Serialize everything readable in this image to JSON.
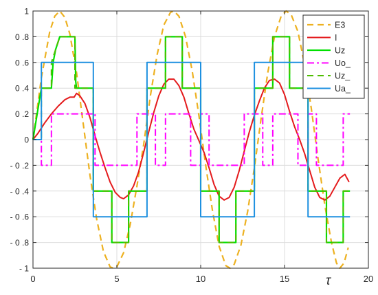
{
  "chart_data": {
    "type": "line",
    "xlabel": "τ",
    "ylabel": "",
    "title": "",
    "xlim": [
      0,
      20
    ],
    "ylim": [
      -1,
      1
    ],
    "xticks": [
      0,
      5,
      10,
      15,
      20
    ],
    "yticks": [
      -1,
      -0.8,
      -0.6,
      -0.4,
      -0.2,
      0,
      0.2,
      0.4,
      0.6,
      0.8,
      1
    ],
    "xtick_labels": [
      "0",
      "5",
      "10",
      "15",
      "20"
    ],
    "ytick_labels": [
      "- 1",
      "- 0 .8",
      "- 0 .6",
      "- 0 .4",
      "- 0 .2",
      "0",
      "0 .2",
      "0 .4",
      "0 .6",
      "0 .8",
      "1"
    ],
    "grid": true,
    "legend_position": "top-right",
    "series": [
      {
        "name": "E3",
        "color": "#edb120",
        "dash": "dash",
        "width": 2.2,
        "points": [
          [
            0,
            0
          ],
          [
            0.5,
            0.48
          ],
          [
            1.0,
            0.84
          ],
          [
            1.3,
            0.96
          ],
          [
            1.6,
            1.0
          ],
          [
            1.9,
            0.95
          ],
          [
            2.2,
            0.82
          ],
          [
            2.6,
            0.52
          ],
          [
            3.0,
            0.12
          ],
          [
            3.4,
            -0.28
          ],
          [
            3.8,
            -0.62
          ],
          [
            4.2,
            -0.87
          ],
          [
            4.6,
            -0.99
          ],
          [
            4.8,
            -1.0
          ],
          [
            5.0,
            -0.99
          ],
          [
            5.4,
            -0.88
          ],
          [
            5.8,
            -0.66
          ],
          [
            6.2,
            -0.36
          ],
          [
            6.6,
            -0.04
          ],
          [
            7.0,
            0.34
          ],
          [
            7.4,
            0.66
          ],
          [
            7.8,
            0.89
          ],
          [
            8.2,
            0.99
          ],
          [
            8.4,
            1.0
          ],
          [
            8.7,
            0.96
          ],
          [
            9.1,
            0.8
          ],
          [
            9.5,
            0.53
          ],
          [
            9.9,
            0.18
          ],
          [
            10.3,
            -0.2
          ],
          [
            10.7,
            -0.55
          ],
          [
            11.1,
            -0.83
          ],
          [
            11.5,
            -0.98
          ],
          [
            11.75,
            -1.0
          ],
          [
            12.0,
            -0.97
          ],
          [
            12.4,
            -0.82
          ],
          [
            12.8,
            -0.56
          ],
          [
            13.2,
            -0.22
          ],
          [
            13.6,
            0.16
          ],
          [
            14.0,
            0.52
          ],
          [
            14.4,
            0.8
          ],
          [
            14.8,
            0.96
          ],
          [
            15.1,
            1.0
          ],
          [
            15.4,
            0.97
          ],
          [
            15.8,
            0.84
          ],
          [
            16.2,
            0.58
          ],
          [
            16.6,
            0.24
          ],
          [
            17.0,
            -0.15
          ],
          [
            17.4,
            -0.51
          ],
          [
            17.8,
            -0.8
          ],
          [
            18.1,
            -0.96
          ],
          [
            18.3,
            -1.0
          ],
          [
            18.55,
            -0.96
          ],
          [
            18.8,
            -0.84
          ]
        ]
      },
      {
        "name": "I",
        "color": "#e41a1c",
        "dash": "solid",
        "width": 2,
        "points": [
          [
            0,
            0
          ],
          [
            0.3,
            0.05
          ],
          [
            0.7,
            0.13
          ],
          [
            1.1,
            0.2
          ],
          [
            1.5,
            0.26
          ],
          [
            1.9,
            0.31
          ],
          [
            2.2,
            0.33
          ],
          [
            2.45,
            0.33
          ],
          [
            2.6,
            0.36
          ],
          [
            2.8,
            0.34
          ],
          [
            3.1,
            0.28
          ],
          [
            3.4,
            0.17
          ],
          [
            3.7,
            0.03
          ],
          [
            4.0,
            -0.1
          ],
          [
            4.3,
            -0.22
          ],
          [
            4.6,
            -0.33
          ],
          [
            4.9,
            -0.41
          ],
          [
            5.2,
            -0.45
          ],
          [
            5.4,
            -0.46
          ],
          [
            5.7,
            -0.43
          ],
          [
            6.0,
            -0.36
          ],
          [
            6.3,
            -0.25
          ],
          [
            6.6,
            -0.1
          ],
          [
            6.9,
            0.06
          ],
          [
            7.2,
            0.21
          ],
          [
            7.5,
            0.34
          ],
          [
            7.8,
            0.43
          ],
          [
            8.1,
            0.47
          ],
          [
            8.4,
            0.47
          ],
          [
            8.7,
            0.42
          ],
          [
            9.0,
            0.33
          ],
          [
            9.3,
            0.2
          ],
          [
            9.6,
            0.08
          ],
          [
            9.9,
            -0.01
          ],
          [
            10.2,
            -0.1
          ],
          [
            10.5,
            -0.22
          ],
          [
            10.8,
            -0.35
          ],
          [
            11.1,
            -0.44
          ],
          [
            11.4,
            -0.47
          ],
          [
            11.7,
            -0.45
          ],
          [
            12.0,
            -0.37
          ],
          [
            12.3,
            -0.24
          ],
          [
            12.6,
            -0.09
          ],
          [
            12.9,
            0.06
          ],
          [
            13.2,
            0.19
          ],
          [
            13.5,
            0.3
          ],
          [
            13.8,
            0.4
          ],
          [
            14.1,
            0.46
          ],
          [
            14.4,
            0.47
          ],
          [
            14.7,
            0.44
          ],
          [
            15.0,
            0.35
          ],
          [
            15.3,
            0.22
          ],
          [
            15.6,
            0.1
          ],
          [
            15.9,
            0.0
          ],
          [
            16.2,
            -0.11
          ],
          [
            16.5,
            -0.24
          ],
          [
            16.8,
            -0.37
          ],
          [
            17.1,
            -0.45
          ],
          [
            17.4,
            -0.47
          ],
          [
            17.7,
            -0.44
          ],
          [
            18.0,
            -0.37
          ],
          [
            18.3,
            -0.3
          ],
          [
            18.6,
            -0.27
          ],
          [
            18.85,
            -0.33
          ]
        ]
      },
      {
        "name": "Uz",
        "color": "#00e000",
        "dash": "solid",
        "width": 2.2,
        "points": [
          [
            0,
            0
          ],
          [
            0.5,
            0.4
          ],
          [
            1.1,
            0.4
          ],
          [
            1.2,
            0.6
          ],
          [
            1.35,
            0.7
          ],
          [
            1.6,
            0.8
          ],
          [
            2.5,
            0.8
          ],
          [
            2.55,
            0.45
          ],
          [
            2.6,
            0.4
          ],
          [
            3.6,
            0.4
          ],
          [
            3.6,
            0
          ],
          [
            3.6,
            -0.4
          ],
          [
            4.7,
            -0.4
          ],
          [
            4.7,
            -0.8
          ],
          [
            5.7,
            -0.8
          ],
          [
            5.7,
            -0.4
          ],
          [
            6.8,
            -0.4
          ],
          [
            6.8,
            0
          ],
          [
            6.8,
            0.4
          ],
          [
            7.9,
            0.4
          ],
          [
            7.9,
            0.8
          ],
          [
            8.9,
            0.8
          ],
          [
            8.9,
            0.4
          ],
          [
            10.0,
            0.4
          ],
          [
            10.0,
            0
          ],
          [
            10.0,
            -0.4
          ],
          [
            11.1,
            -0.4
          ],
          [
            11.1,
            -0.8
          ],
          [
            12.1,
            -0.8
          ],
          [
            12.1,
            -0.4
          ],
          [
            13.2,
            -0.4
          ],
          [
            13.2,
            0
          ],
          [
            13.2,
            0.4
          ],
          [
            14.3,
            0.4
          ],
          [
            14.3,
            0.8
          ],
          [
            15.3,
            0.8
          ],
          [
            15.3,
            0.4
          ],
          [
            16.4,
            0.4
          ],
          [
            16.4,
            0
          ],
          [
            16.4,
            -0.4
          ],
          [
            17.5,
            -0.4
          ],
          [
            17.5,
            -0.8
          ],
          [
            18.5,
            -0.8
          ],
          [
            18.5,
            -0.4
          ],
          [
            18.9,
            -0.4
          ]
        ]
      },
      {
        "name": "Uo_",
        "color": "#ff00ff",
        "dash": "dashdot",
        "width": 2,
        "points": [
          [
            0,
            0
          ],
          [
            0.5,
            0
          ],
          [
            0.5,
            -0.2
          ],
          [
            1.1,
            -0.2
          ],
          [
            1.1,
            0.2
          ],
          [
            2.6,
            0.2
          ],
          [
            2.6,
            0.2
          ],
          [
            3.7,
            0.2
          ],
          [
            3.7,
            -0.2
          ],
          [
            4.7,
            -0.2
          ],
          [
            4.7,
            -0.2
          ],
          [
            6.2,
            -0.2
          ],
          [
            6.2,
            0.2
          ],
          [
            6.8,
            0.2
          ],
          [
            6.8,
            0.2
          ],
          [
            7.3,
            0.2
          ],
          [
            7.3,
            -0.2
          ],
          [
            7.9,
            -0.2
          ],
          [
            7.9,
            0.2
          ],
          [
            9.4,
            0.2
          ],
          [
            9.4,
            -0.2
          ],
          [
            10.0,
            -0.2
          ],
          [
            10.0,
            0.2
          ],
          [
            10.5,
            0.2
          ],
          [
            10.5,
            -0.2
          ],
          [
            12.1,
            -0.2
          ],
          [
            12.1,
            -0.2
          ],
          [
            12.6,
            -0.2
          ],
          [
            12.6,
            0.2
          ],
          [
            13.7,
            0.2
          ],
          [
            13.7,
            -0.2
          ],
          [
            14.3,
            -0.2
          ],
          [
            14.3,
            0.2
          ],
          [
            15.8,
            0.2
          ],
          [
            15.8,
            -0.2
          ],
          [
            16.4,
            -0.2
          ],
          [
            16.4,
            0.2
          ],
          [
            16.9,
            0.2
          ],
          [
            16.9,
            -0.2
          ],
          [
            18.5,
            -0.2
          ],
          [
            18.5,
            0.2
          ],
          [
            18.9,
            0.2
          ]
        ]
      },
      {
        "name": "Uz_",
        "color": "#4dbd00",
        "dash": "dash",
        "width": 2,
        "points": [
          [
            0,
            0
          ],
          [
            0.5,
            0
          ],
          [
            0.5,
            0.4
          ],
          [
            1.1,
            0.4
          ],
          [
            1.1,
            0.6
          ],
          [
            1.6,
            0.8
          ],
          [
            2.5,
            0.8
          ],
          [
            2.5,
            0.4
          ],
          [
            3.6,
            0.4
          ],
          [
            3.6,
            -0.4
          ],
          [
            4.7,
            -0.4
          ],
          [
            4.7,
            -0.8
          ],
          [
            5.7,
            -0.8
          ],
          [
            5.7,
            -0.4
          ],
          [
            6.8,
            -0.4
          ],
          [
            6.8,
            0.4
          ],
          [
            7.9,
            0.4
          ],
          [
            7.9,
            0.8
          ],
          [
            8.9,
            0.8
          ],
          [
            8.9,
            0.4
          ],
          [
            10.0,
            0.4
          ],
          [
            10.0,
            -0.4
          ],
          [
            11.1,
            -0.4
          ],
          [
            11.1,
            -0.8
          ],
          [
            12.1,
            -0.8
          ],
          [
            12.1,
            -0.4
          ],
          [
            13.2,
            -0.4
          ],
          [
            13.2,
            0.4
          ],
          [
            14.3,
            0.4
          ],
          [
            14.3,
            0.8
          ],
          [
            15.3,
            0.8
          ],
          [
            15.3,
            0.4
          ],
          [
            16.4,
            0.4
          ],
          [
            16.4,
            -0.4
          ],
          [
            17.5,
            -0.4
          ],
          [
            17.5,
            -0.8
          ],
          [
            18.5,
            -0.8
          ],
          [
            18.5,
            -0.4
          ],
          [
            18.9,
            -0.4
          ]
        ]
      },
      {
        "name": "Ua_",
        "color": "#1e90e0",
        "dash": "solid",
        "width": 2,
        "points": [
          [
            0,
            0
          ],
          [
            0.5,
            0
          ],
          [
            0.5,
            0.6
          ],
          [
            3.6,
            0.6
          ],
          [
            3.6,
            -0.6
          ],
          [
            6.8,
            -0.6
          ],
          [
            6.8,
            0.6
          ],
          [
            10.0,
            0.6
          ],
          [
            10.0,
            -0.6
          ],
          [
            13.2,
            -0.6
          ],
          [
            13.2,
            0.6
          ],
          [
            16.4,
            0.6
          ],
          [
            16.4,
            -0.6
          ],
          [
            18.9,
            -0.6
          ]
        ]
      }
    ]
  }
}
